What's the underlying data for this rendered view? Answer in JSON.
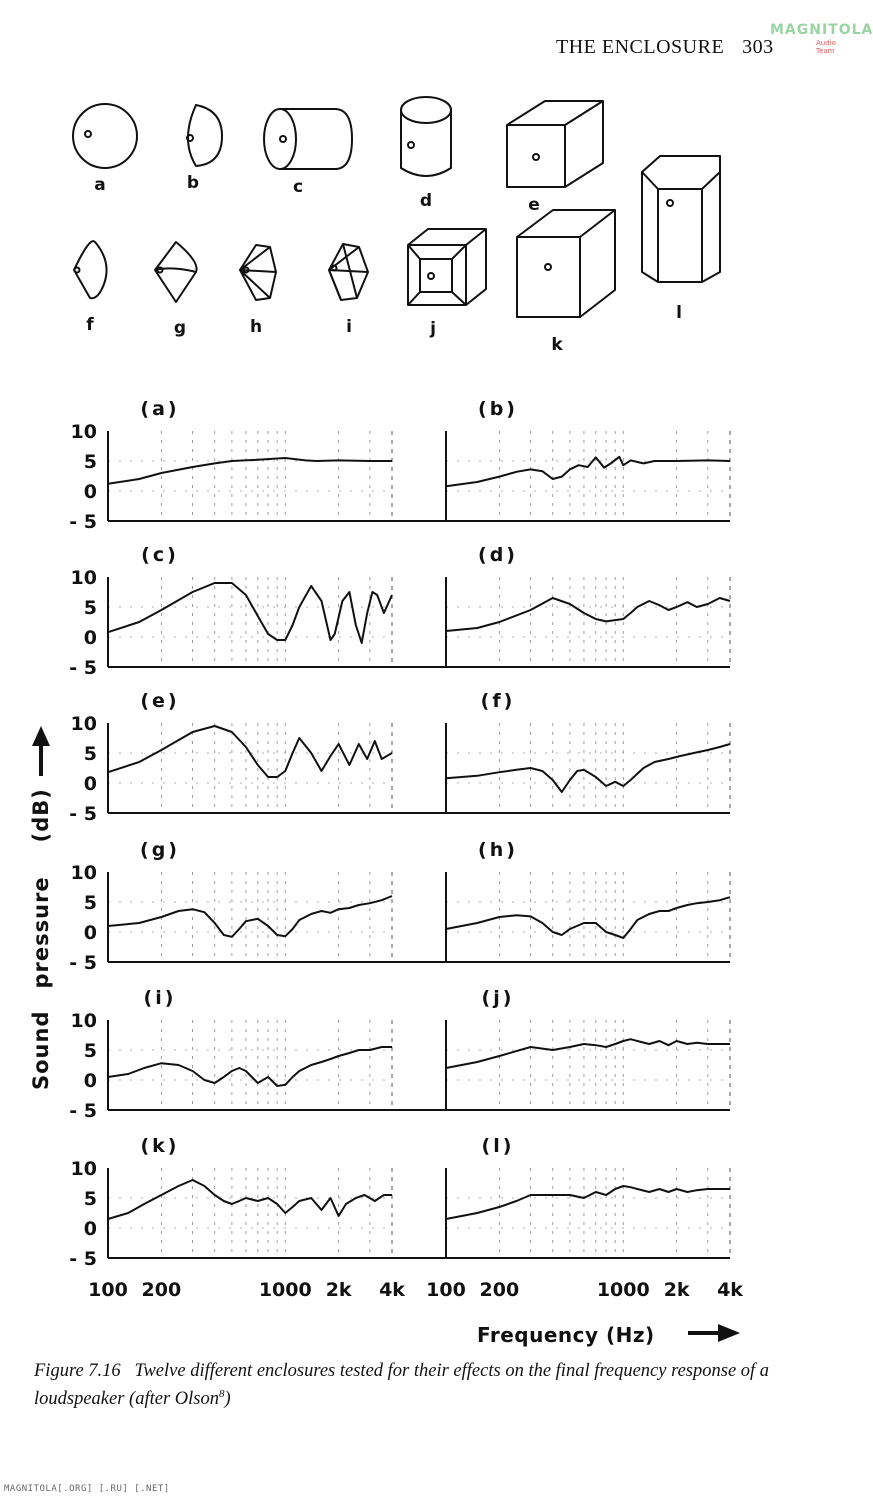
{
  "header": {
    "title": "THE ENCLOSURE",
    "page_number": "303"
  },
  "watermark": {
    "line1": "MAGNITOLA",
    "line2": "Audio Team"
  },
  "enclosure_shapes": [
    {
      "letter": "a",
      "shape": "sphere"
    },
    {
      "letter": "b",
      "shape": "hemisphere"
    },
    {
      "letter": "c",
      "shape": "cylinder"
    },
    {
      "letter": "d",
      "shape": "cylinder"
    },
    {
      "letter": "e",
      "shape": "cube"
    },
    {
      "letter": "f",
      "shape": "cone"
    },
    {
      "letter": "g",
      "shape": "double-cone"
    },
    {
      "letter": "h",
      "shape": "pyramid"
    },
    {
      "letter": "i",
      "shape": "double-pyramid"
    },
    {
      "letter": "j",
      "shape": "truncated-pyramid-box"
    },
    {
      "letter": "k",
      "shape": "rectangular-box"
    },
    {
      "letter": "l",
      "shape": "bevelled-box"
    }
  ],
  "chart_data": {
    "type": "line",
    "ylabel": "Sound pressure (dB)",
    "xlabel": "Frequency (Hz)",
    "y_ticks": [
      "10",
      "5",
      "0",
      "- 5"
    ],
    "x_ticks": [
      "100",
      "200",
      "1000",
      "2k",
      "4k"
    ],
    "x_tick_values": [
      100,
      200,
      1000,
      2000,
      4000
    ],
    "ylim": [
      -5,
      10
    ],
    "xlim": [
      100,
      4000
    ],
    "xscale": "log",
    "panels": [
      {
        "label": "(a)",
        "x": [
          100,
          150,
          200,
          300,
          400,
          500,
          700,
          1000,
          1300,
          1500,
          2000,
          3000,
          4000
        ],
        "y": [
          1.2,
          2.0,
          3.0,
          4.0,
          4.6,
          5.0,
          5.2,
          5.5,
          5.1,
          5.0,
          5.1,
          5.0,
          5.0
        ]
      },
      {
        "label": "(b)",
        "x": [
          100,
          150,
          200,
          250,
          300,
          350,
          400,
          450,
          500,
          560,
          630,
          700,
          780,
          850,
          950,
          1000,
          1100,
          1300,
          1500,
          2000,
          3000,
          4000
        ],
        "y": [
          0.8,
          1.5,
          2.4,
          3.2,
          3.6,
          3.3,
          2.0,
          2.4,
          3.6,
          4.3,
          4.0,
          5.6,
          3.9,
          4.6,
          5.7,
          4.3,
          5.1,
          4.6,
          5.0,
          5.0,
          5.1,
          5.0
        ]
      },
      {
        "label": "(c)",
        "x": [
          100,
          150,
          200,
          300,
          400,
          500,
          600,
          700,
          800,
          900,
          1000,
          1100,
          1200,
          1400,
          1600,
          1800,
          1900,
          2100,
          2300,
          2500,
          2700,
          2900,
          3100,
          3300,
          3600,
          4000
        ],
        "y": [
          0.8,
          2.5,
          4.5,
          7.5,
          9.0,
          9.0,
          7.0,
          3.5,
          0.5,
          -0.5,
          -0.5,
          2.0,
          5.0,
          8.5,
          6.0,
          -0.5,
          0.5,
          6.0,
          7.5,
          2.0,
          -1.0,
          4.0,
          7.5,
          7.0,
          4.0,
          7.0
        ]
      },
      {
        "label": "(d)",
        "x": [
          100,
          150,
          200,
          300,
          400,
          500,
          600,
          700,
          800,
          1000,
          1100,
          1200,
          1400,
          1600,
          1800,
          2000,
          2300,
          2600,
          3000,
          3500,
          4000
        ],
        "y": [
          1.0,
          1.5,
          2.5,
          4.5,
          6.5,
          5.5,
          4.0,
          3.0,
          2.6,
          3.0,
          4.0,
          5.0,
          6.0,
          5.3,
          4.5,
          5.0,
          5.8,
          5.0,
          5.5,
          6.5,
          6.0
        ]
      },
      {
        "label": "(e)",
        "x": [
          100,
          150,
          200,
          300,
          400,
          500,
          600,
          700,
          800,
          900,
          1000,
          1100,
          1200,
          1400,
          1600,
          1800,
          2000,
          2300,
          2600,
          2900,
          3200,
          3500,
          4000
        ],
        "y": [
          1.8,
          3.5,
          5.5,
          8.5,
          9.5,
          8.5,
          6.0,
          3.0,
          1.0,
          1.0,
          2.0,
          5.0,
          7.5,
          5.0,
          2.0,
          4.5,
          6.5,
          3.0,
          6.5,
          4.0,
          7.0,
          4.0,
          5.0
        ]
      },
      {
        "label": "(f)",
        "x": [
          100,
          150,
          200,
          250,
          300,
          350,
          400,
          450,
          500,
          550,
          600,
          700,
          800,
          900,
          1000,
          1100,
          1300,
          1500,
          1800,
          2100,
          2500,
          3000,
          3500,
          4000
        ],
        "y": [
          0.8,
          1.2,
          1.8,
          2.2,
          2.5,
          2.0,
          0.5,
          -1.5,
          0.5,
          2.0,
          2.2,
          1.0,
          -0.5,
          0.2,
          -0.5,
          0.5,
          2.5,
          3.5,
          4.0,
          4.5,
          5.0,
          5.5,
          6.0,
          6.5
        ]
      },
      {
        "label": "(g)",
        "x": [
          100,
          150,
          200,
          250,
          300,
          350,
          400,
          450,
          500,
          550,
          600,
          700,
          800,
          900,
          1000,
          1100,
          1200,
          1400,
          1600,
          1800,
          2000,
          2300,
          2600,
          3000,
          3500,
          4000
        ],
        "y": [
          1.0,
          1.5,
          2.5,
          3.5,
          3.8,
          3.3,
          1.5,
          -0.5,
          -0.8,
          0.5,
          1.8,
          2.2,
          1.0,
          -0.5,
          -0.7,
          0.5,
          2.0,
          3.0,
          3.5,
          3.2,
          3.8,
          4.0,
          4.5,
          4.8,
          5.3,
          6.0
        ]
      },
      {
        "label": "(h)",
        "x": [
          100,
          150,
          200,
          250,
          300,
          350,
          400,
          450,
          500,
          600,
          700,
          800,
          900,
          1000,
          1100,
          1200,
          1400,
          1600,
          1800,
          2000,
          2300,
          2600,
          3000,
          3500,
          4000
        ],
        "y": [
          0.5,
          1.5,
          2.5,
          2.8,
          2.6,
          1.5,
          0.0,
          -0.5,
          0.5,
          1.5,
          1.5,
          0.0,
          -0.5,
          -1.0,
          0.5,
          2.0,
          3.0,
          3.5,
          3.5,
          4.0,
          4.5,
          4.8,
          5.0,
          5.3,
          5.8
        ]
      },
      {
        "label": "(i)",
        "x": [
          100,
          130,
          160,
          200,
          250,
          300,
          350,
          400,
          450,
          500,
          550,
          600,
          700,
          800,
          900,
          1000,
          1100,
          1200,
          1400,
          1600,
          1800,
          2000,
          2300,
          2600,
          3000,
          3500,
          4000
        ],
        "y": [
          0.5,
          1.0,
          2.0,
          2.8,
          2.5,
          1.5,
          0.0,
          -0.5,
          0.5,
          1.5,
          2.0,
          1.5,
          -0.5,
          0.5,
          -1.0,
          -0.8,
          0.5,
          1.5,
          2.5,
          3.0,
          3.5,
          4.0,
          4.5,
          5.0,
          5.0,
          5.5,
          5.5
        ]
      },
      {
        "label": "(j)",
        "x": [
          100,
          150,
          200,
          300,
          400,
          500,
          600,
          700,
          800,
          900,
          1000,
          1100,
          1200,
          1400,
          1600,
          1800,
          2000,
          2300,
          2600,
          3000,
          3500,
          4000
        ],
        "y": [
          2.0,
          3.0,
          4.0,
          5.5,
          5.0,
          5.5,
          6.0,
          5.8,
          5.5,
          6.0,
          6.5,
          6.8,
          6.5,
          6.0,
          6.5,
          5.8,
          6.5,
          6.0,
          6.2,
          6.0,
          6.0,
          6.0
        ]
      },
      {
        "label": "(k)",
        "x": [
          100,
          130,
          160,
          200,
          250,
          300,
          350,
          400,
          450,
          500,
          550,
          600,
          700,
          800,
          900,
          1000,
          1100,
          1200,
          1400,
          1600,
          1800,
          2000,
          2200,
          2500,
          2800,
          3200,
          3600,
          4000
        ],
        "y": [
          1.5,
          2.5,
          4.0,
          5.5,
          7.0,
          8.0,
          7.0,
          5.5,
          4.5,
          4.0,
          4.5,
          5.0,
          4.5,
          5.0,
          4.0,
          2.5,
          3.5,
          4.5,
          5.0,
          3.0,
          5.0,
          2.0,
          4.0,
          5.0,
          5.5,
          4.5,
          5.5,
          5.5
        ]
      },
      {
        "label": "(l)",
        "x": [
          100,
          150,
          200,
          250,
          300,
          400,
          500,
          600,
          700,
          800,
          900,
          1000,
          1100,
          1200,
          1400,
          1600,
          1800,
          2000,
          2300,
          2600,
          3000,
          3500,
          4000
        ],
        "y": [
          1.5,
          2.5,
          3.5,
          4.5,
          5.5,
          5.5,
          5.5,
          5.0,
          6.0,
          5.5,
          6.5,
          7.0,
          6.8,
          6.5,
          6.0,
          6.5,
          6.0,
          6.5,
          6.0,
          6.3,
          6.5,
          6.5,
          6.5
        ]
      }
    ]
  },
  "axis_titles": {
    "y_word1": "Sound",
    "y_word2": "pressure",
    "y_word3": "(dB)",
    "x_title": "Frequency (Hz)"
  },
  "caption": {
    "label": "Figure 7.16",
    "text": "Twelve different enclosures tested for their effects on the final frequency response of a loudspeaker (after Olson",
    "ref": "8",
    "close": ")"
  },
  "footer": "MAGNITOLA[.ORG] [.RU] [.NET]"
}
